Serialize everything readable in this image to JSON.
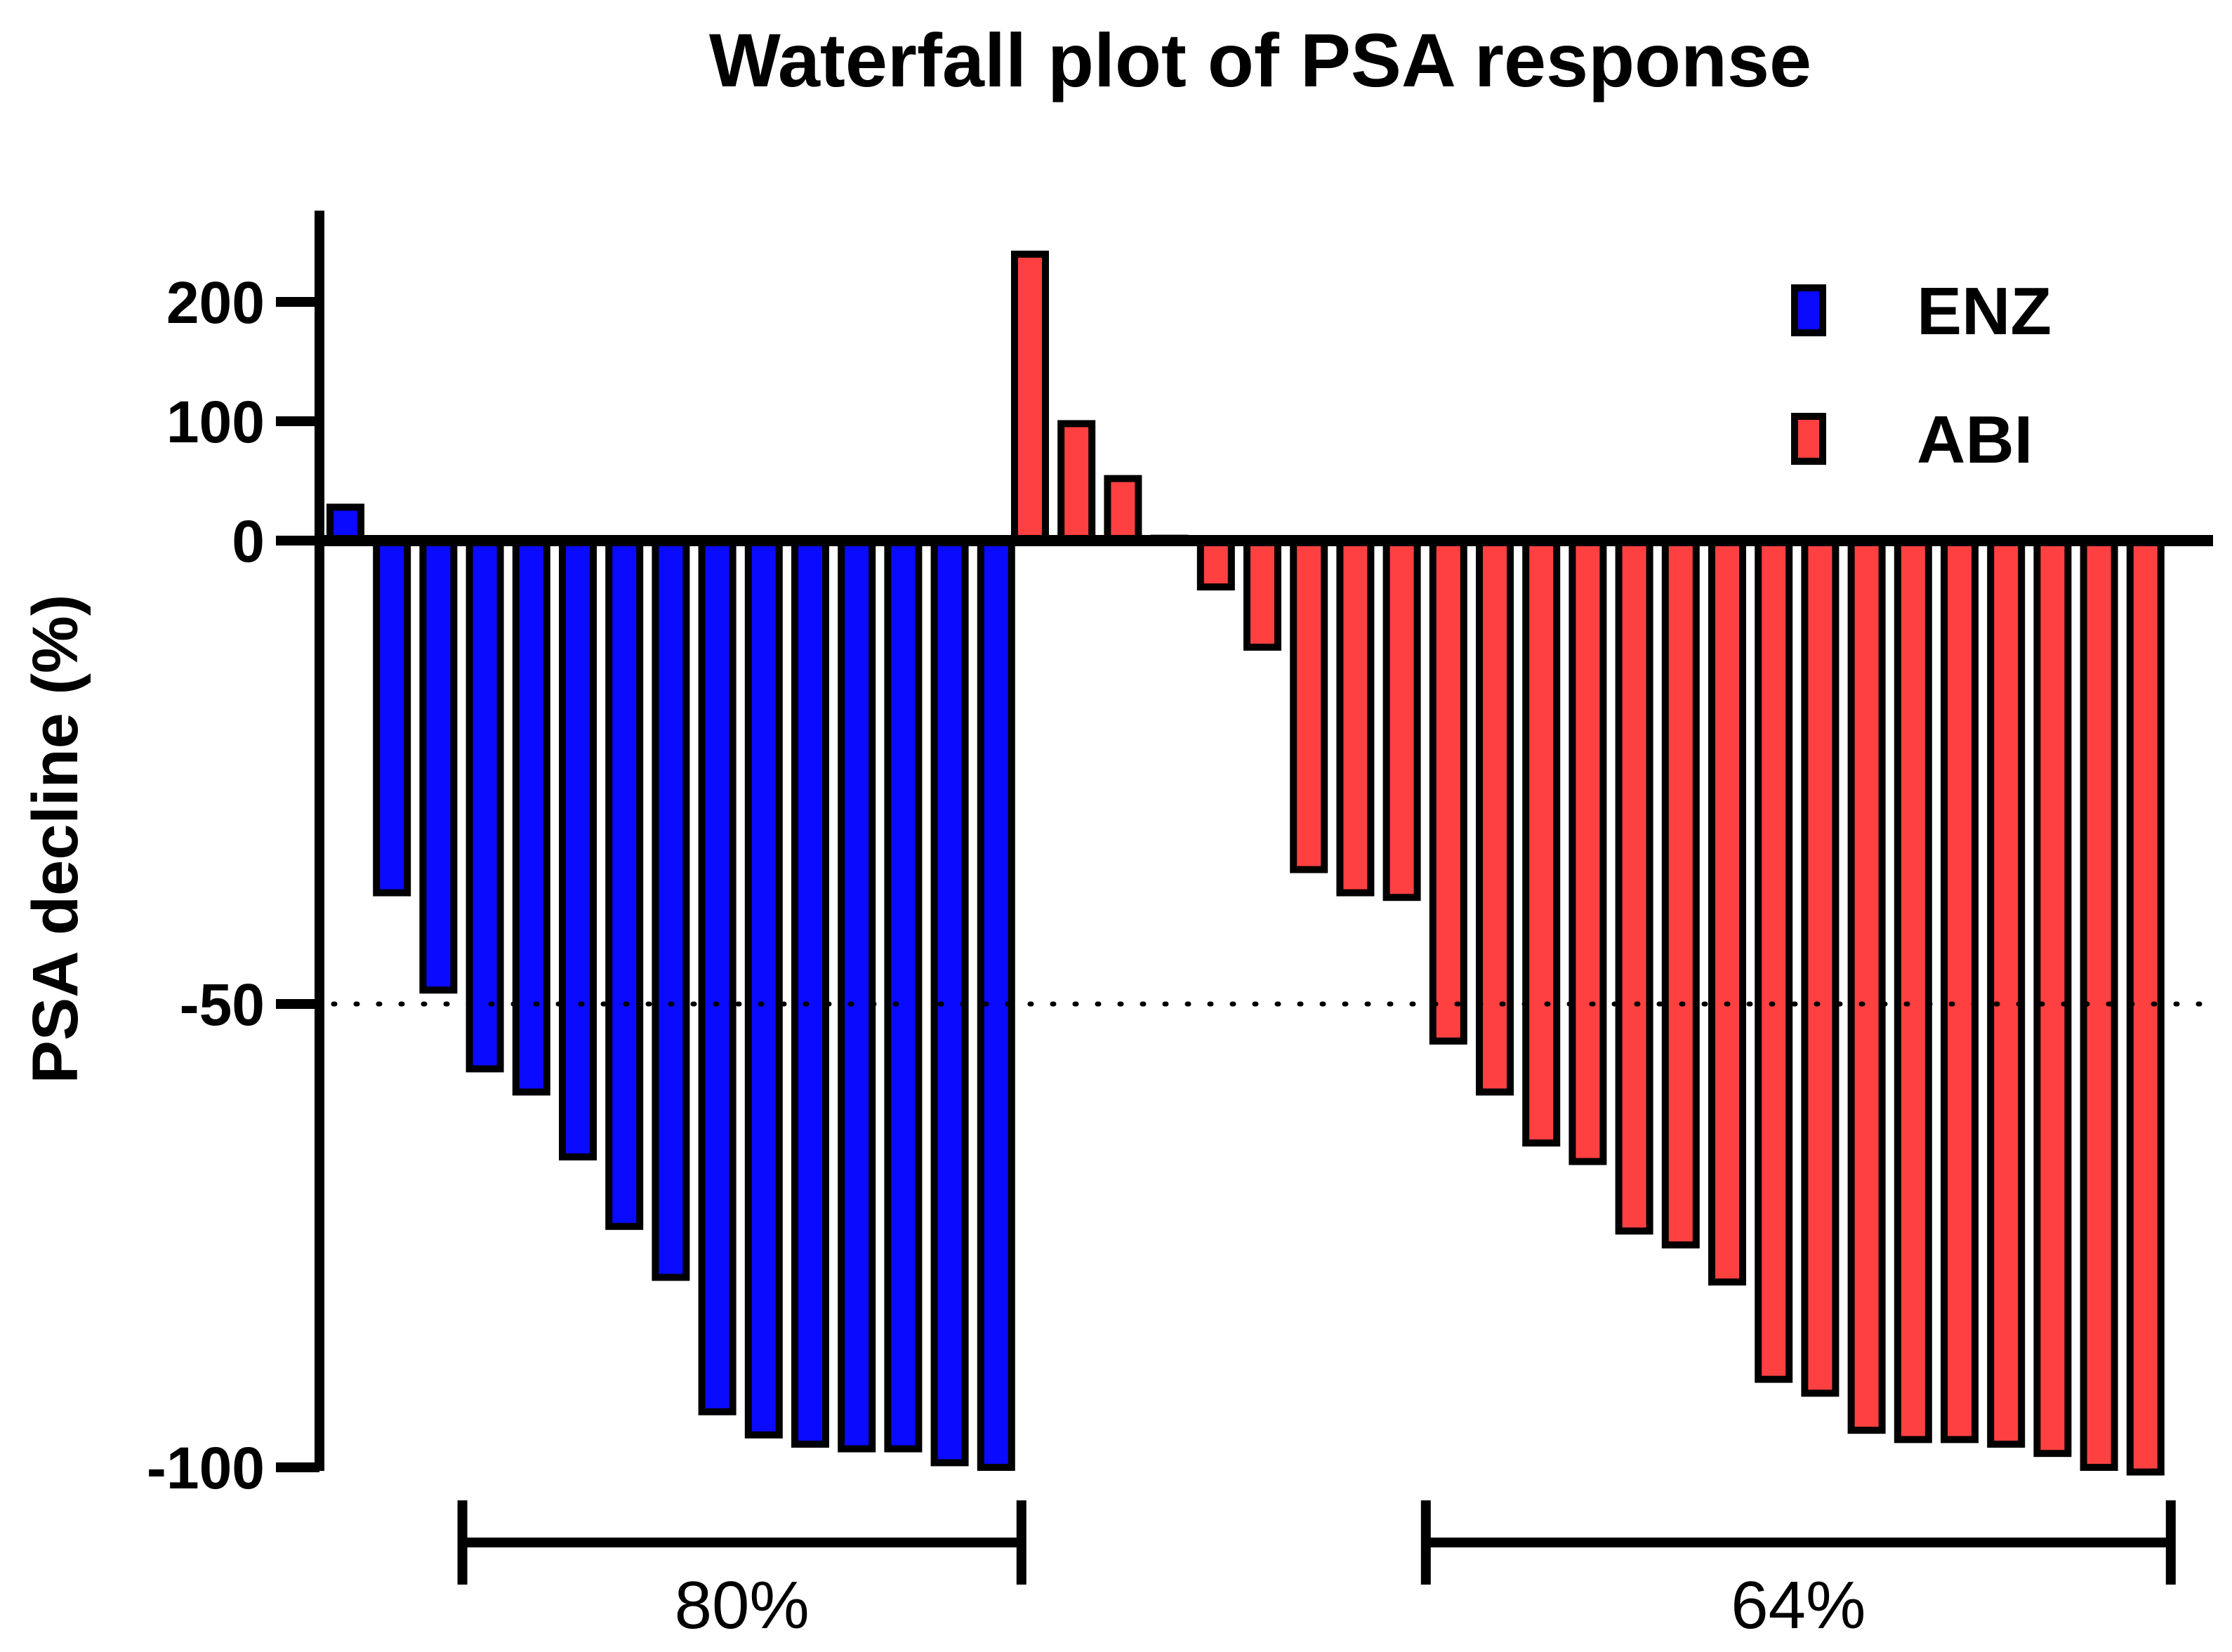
{
  "chart_data": {
    "type": "bar",
    "title": "Waterfall plot of PSA response",
    "ylabel": "PSA decline (%)",
    "xlabel": "",
    "y_ticks": [
      {
        "value": 200,
        "label": "200"
      },
      {
        "value": 100,
        "label": "100"
      },
      {
        "value": 0,
        "label": "0"
      },
      {
        "value": -50,
        "label": "-50"
      },
      {
        "value": -100,
        "label": "-100"
      }
    ],
    "reference_line": {
      "value": -50,
      "style": "dotted"
    },
    "axis_scale": {
      "positive_max": 250,
      "negative_min": -100
    },
    "series": [
      {
        "name": "ENZ",
        "color": "#0a0aff",
        "values": [
          28,
          -38,
          -48.5,
          -57,
          -59.5,
          -66.5,
          -74,
          -79.5,
          -94,
          -96.5,
          -97.5,
          -98,
          -98,
          -99.5,
          -100
        ]
      },
      {
        "name": "ABI",
        "color": "#ff4040",
        "values": [
          240,
          98,
          52,
          2,
          -5,
          -11.5,
          -35.5,
          -38,
          -38.5,
          -54,
          -59.5,
          -65,
          -67,
          -74.5,
          -76,
          -80,
          -90.5,
          -92,
          -96,
          -97,
          -97,
          -97.5,
          -98.5,
          -100,
          -100.5
        ]
      }
    ],
    "legend": {
      "position": "top-right",
      "entries": [
        "ENZ",
        "ABI"
      ]
    },
    "annotations": [
      {
        "series": "ENZ",
        "label": "80%",
        "from_index": 3,
        "to_index": 14
      },
      {
        "series": "ABI",
        "label": "64%",
        "from_index": 9,
        "to_index": 24
      }
    ]
  }
}
